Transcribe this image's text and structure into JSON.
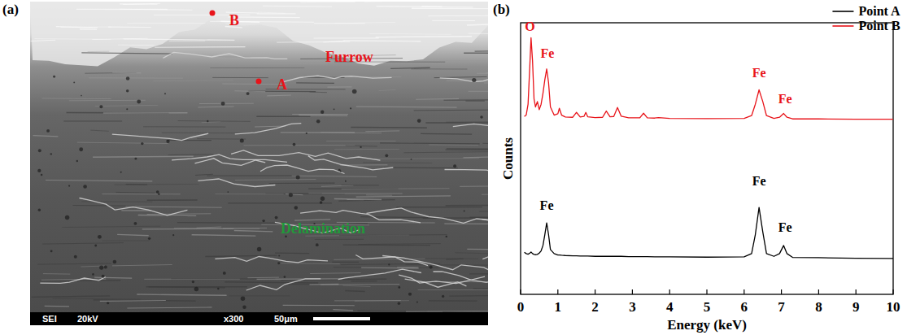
{
  "image_panel": {
    "panel_label": "(a)",
    "markers": [
      {
        "label": "B",
        "color": "#e8141a"
      },
      {
        "label": "A",
        "color": "#e8141a"
      }
    ],
    "regions": [
      {
        "label": "Furrow",
        "color": "#e8141a"
      },
      {
        "label": "Delamination",
        "color": "#1f9a3a"
      }
    ],
    "info_bar": [
      "SEI",
      "20kV",
      "x300",
      "50μm"
    ]
  },
  "chart_panel_label": "(b)",
  "chart_data": {
    "type": "line",
    "x_label": "Energy (keV)",
    "y_label": "Counts",
    "x": [
      0.1,
      0.15,
      0.2,
      0.25,
      0.28,
      0.32,
      0.36,
      0.4,
      0.45,
      0.5,
      0.55,
      0.6,
      0.65,
      0.7,
      0.75,
      0.8,
      0.9,
      1.0,
      1.04,
      1.1,
      1.2,
      1.4,
      1.5,
      1.6,
      1.7,
      1.75,
      1.8,
      2.0,
      2.2,
      2.3,
      2.4,
      2.5,
      2.6,
      2.7,
      2.9,
      3.2,
      3.3,
      3.4,
      3.6,
      3.7,
      4.0,
      5.0,
      6.0,
      6.2,
      6.3,
      6.4,
      6.5,
      6.6,
      6.8,
      6.95,
      7.06,
      7.15,
      7.3,
      8.0,
      9.0,
      10.0
    ],
    "series": [
      {
        "name": "Point A",
        "color": "#000000",
        "values": [
          15.5,
          15,
          14.8,
          15.2,
          15.6,
          15,
          14.7,
          14.6,
          14.7,
          15.2,
          16,
          18,
          22,
          26.3,
          22,
          16.5,
          15,
          14.5,
          14.5,
          14.4,
          14.3,
          14.2,
          14.2,
          14.1,
          14.1,
          14.1,
          14.1,
          14,
          14,
          14,
          14,
          14,
          14,
          14,
          13.9,
          13.9,
          13.9,
          13.9,
          13.8,
          13.8,
          13.8,
          13.7,
          13.8,
          15,
          22,
          32,
          23,
          15,
          14,
          15,
          18,
          15,
          13.6,
          13.5,
          13.3,
          13.2
        ]
      },
      {
        "name": "Point B",
        "color": "#e8141a",
        "values": [
          65.5,
          66,
          70,
          85,
          94.5,
          86,
          72,
          69,
          71,
          68,
          70,
          74,
          79,
          83,
          78,
          69,
          66,
          66.5,
          68.5,
          66,
          65.3,
          65.2,
          67,
          65.3,
          65.5,
          67,
          65.4,
          65.1,
          65.2,
          67.5,
          65.4,
          65.5,
          68.8,
          65.6,
          65,
          65,
          66.7,
          65,
          64.9,
          65.1,
          64.8,
          64.7,
          64.8,
          65.8,
          70,
          75.3,
          71,
          65.8,
          64.8,
          65.2,
          66.6,
          65.2,
          64.6,
          64.6,
          64.5,
          64.5
        ]
      }
    ],
    "xlim": [
      0,
      10
    ],
    "xticks": [
      0,
      1,
      2,
      3,
      4,
      5,
      6,
      7,
      8,
      9,
      10
    ],
    "ylim": [
      0,
      100
    ],
    "tick_labels": "x",
    "legend": "upper-right",
    "annotations": [
      {
        "text": "O",
        "x": 0.25,
        "y": 97,
        "color": "#e8141a"
      },
      {
        "text": "Fe",
        "x": 0.72,
        "y": 87,
        "color": "#e8141a"
      },
      {
        "text": "Fe",
        "x": 6.4,
        "y": 80,
        "color": "#e8141a"
      },
      {
        "text": "Fe",
        "x": 7.1,
        "y": 70.5,
        "color": "#e8141a"
      },
      {
        "text": "Fe",
        "x": 0.7,
        "y": 31,
        "color": "#000000"
      },
      {
        "text": "Fe",
        "x": 6.4,
        "y": 40,
        "color": "#000000"
      },
      {
        "text": "Fe",
        "x": 7.1,
        "y": 23,
        "color": "#000000"
      }
    ]
  }
}
